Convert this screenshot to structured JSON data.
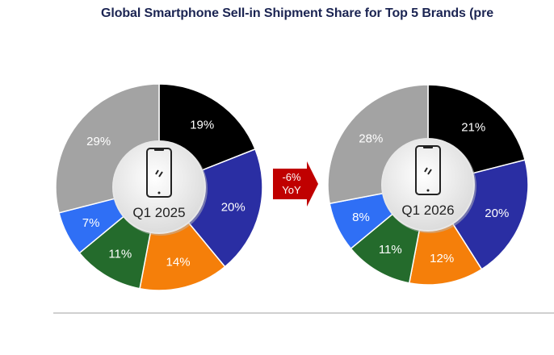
{
  "title": "Global Smartphone Sell-in Shipment Share for Top 5 Brands (pre",
  "chart_data": [
    {
      "type": "pie",
      "center_label": "Q1 2025",
      "center_icon": "smartphone-icon",
      "values": [
        19,
        20,
        14,
        11,
        7,
        29
      ],
      "labels": [
        "19%",
        "20%",
        "14%",
        "11%",
        "7%",
        "29%"
      ],
      "colors": [
        "#000000",
        "#2a2ea3",
        "#f57f0a",
        "#246b2c",
        "#2f6ff5",
        "#a3a3a3"
      ]
    },
    {
      "type": "pie",
      "center_label": "Q1 2026",
      "center_icon": "smartphone-icon",
      "values": [
        21,
        20,
        12,
        11,
        8,
        28
      ],
      "labels": [
        "21%",
        "20%",
        "12%",
        "11%",
        "8%",
        "28%"
      ],
      "colors": [
        "#000000",
        "#2a2ea3",
        "#f57f0a",
        "#246b2c",
        "#2f6ff5",
        "#a3a3a3"
      ]
    }
  ],
  "change": {
    "line1": "-6%",
    "line2": "YoY",
    "color": "#c00000"
  }
}
